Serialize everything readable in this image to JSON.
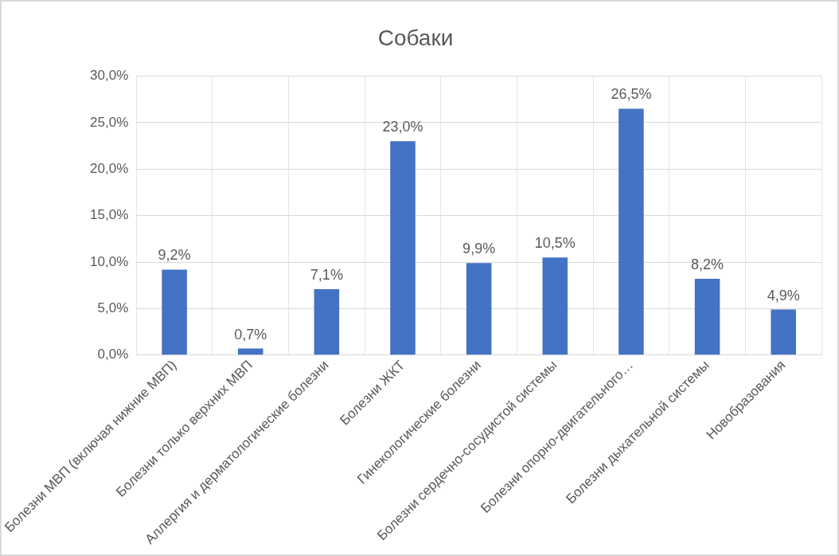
{
  "chart_data": {
    "type": "bar",
    "title": "Собаки",
    "categories": [
      "Болезни МВП (включая нижние МВП)",
      "Болезни только верхних МВП",
      "Аллергия и дерматологические болезни",
      "Болезни ЖКТ",
      "Гинекологические болезни",
      "Болезни сердечно-сосудистой системы",
      "Болезни опорно-двигательного…",
      "Болезни дыхательной системы",
      "Новобразования"
    ],
    "values": [
      9.2,
      0.7,
      7.1,
      23.0,
      9.9,
      10.5,
      26.5,
      8.2,
      4.9
    ],
    "value_labels": [
      "9,2%",
      "0,7%",
      "7,1%",
      "23,0%",
      "9,9%",
      "10,5%",
      "26,5%",
      "8,2%",
      "4,9%"
    ],
    "color": "#4472c4",
    "ylim": [
      0,
      30
    ],
    "yticks": [
      {
        "value": 0,
        "label": "0,0%"
      },
      {
        "value": 5,
        "label": "5,0%"
      },
      {
        "value": 10,
        "label": "10,0%"
      },
      {
        "value": 15,
        "label": "15,0%"
      },
      {
        "value": 20,
        "label": "20,0%"
      },
      {
        "value": 25,
        "label": "25,0%"
      },
      {
        "value": 30,
        "label": "30,0%"
      }
    ],
    "grid": true
  }
}
